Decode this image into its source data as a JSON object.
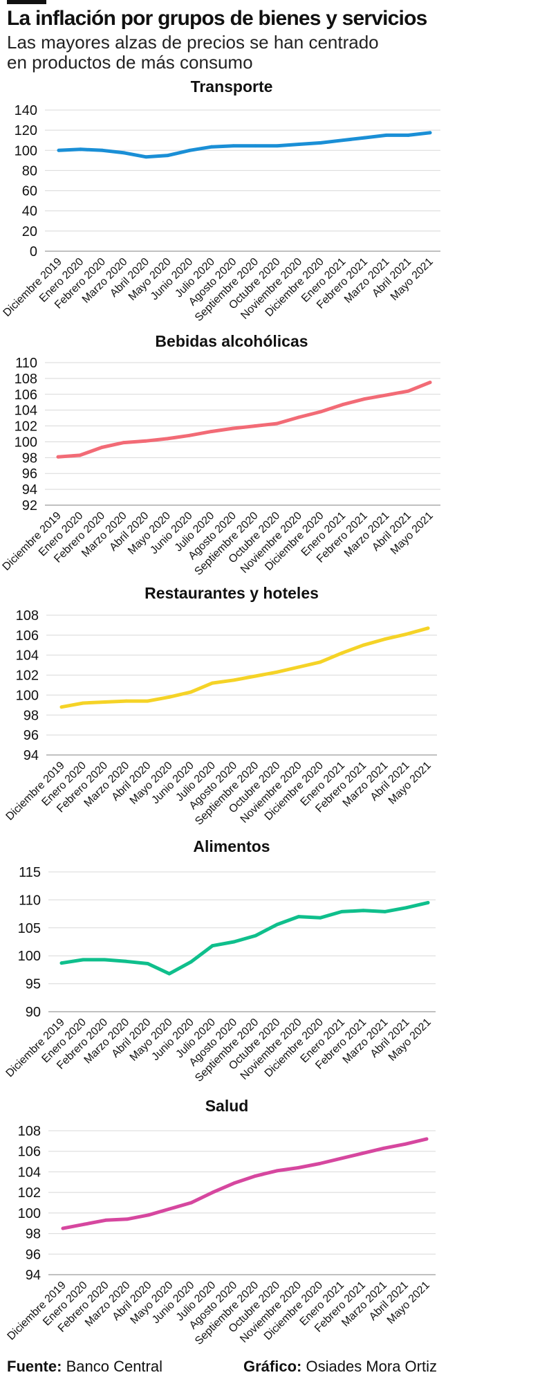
{
  "title": "La inflación por grupos de bienes y servicios",
  "subtitle": "Las mayores alzas de precios se han centrado en productos de más consumo",
  "footer": {
    "source_label": "Fuente:",
    "source_value": "Banco Central",
    "credit_label": "Gráfico:",
    "credit_value": "Osiades Mora Ortiz"
  },
  "chart_data": [
    {
      "type": "line",
      "title": "Transporte",
      "color": "#1a8fd6",
      "ylim": [
        0,
        140
      ],
      "yticks": [
        0,
        20,
        40,
        60,
        80,
        100,
        120,
        140
      ],
      "categories": [
        "Diciembre 2019",
        "Enero 2020",
        "Febrero 2020",
        "Marzo 2020",
        "Abril 2020",
        "Mayo 2020",
        "Junio 2020",
        "Julio 2020",
        "Agosto 2020",
        "Septiembre 2020",
        "Octubre 2020",
        "Noviembre 2020",
        "Diciembre 2020",
        "Enero 2021",
        "Febrero 2021",
        "Marzo 2021",
        "Abril 2021",
        "Mayo 2021"
      ],
      "values": [
        100,
        101,
        100,
        97.5,
        93.5,
        95,
        100,
        103.5,
        104.5,
        104.5,
        104.5,
        106,
        107.5,
        110,
        112.5,
        115,
        115,
        117.5
      ]
    },
    {
      "type": "line",
      "title": "Bebidas alcohólicas",
      "color": "#f26b76",
      "ylim": [
        92,
        110
      ],
      "yticks": [
        92,
        94,
        96,
        98,
        100,
        102,
        104,
        106,
        108,
        110
      ],
      "categories": [
        "Diciembre 2019",
        "Enero 2020",
        "Febrero 2020",
        "Marzo 2020",
        "Abril 2020",
        "Mayo 2020",
        "Junio 2020",
        "Julio 2020",
        "Agosto 2020",
        "Septiembre 2020",
        "Octubre 2020",
        "Noviembre 2020",
        "Diciembre 2020",
        "Enero 2021",
        "Febrero 2021",
        "Marzo 2021",
        "Abril 2021",
        "Mayo 2021"
      ],
      "values": [
        98.1,
        98.3,
        99.3,
        99.9,
        100.1,
        100.4,
        100.8,
        101.3,
        101.7,
        102.0,
        102.3,
        103.1,
        103.8,
        104.7,
        105.4,
        105.9,
        106.4,
        107.5
      ]
    },
    {
      "type": "line",
      "title": "Restaurantes y hoteles",
      "color": "#f5d327",
      "ylim": [
        94,
        108
      ],
      "yticks": [
        94,
        96,
        98,
        100,
        102,
        104,
        106,
        108
      ],
      "categories": [
        "Diciembre 2019",
        "Enero 2020",
        "Febrero 2020",
        "Marzo 2020",
        "Abril 2020",
        "Mayo 2020",
        "Junio 2020",
        "Julio 2020",
        "Agosto 2020",
        "Septiembre 2020",
        "Octubre 2020",
        "Noviembre 2020",
        "Diciembre 2020",
        "Enero 2021",
        "Febrero 2021",
        "Marzo 2021",
        "Abril 2021",
        "Mayo 2021"
      ],
      "values": [
        98.8,
        99.2,
        99.3,
        99.4,
        99.4,
        99.8,
        100.3,
        101.2,
        101.5,
        101.9,
        102.3,
        102.8,
        103.3,
        104.2,
        105.0,
        105.6,
        106.1,
        106.7
      ]
    },
    {
      "type": "line",
      "title": "Alimentos",
      "color": "#0fbf8c",
      "ylim": [
        90,
        115
      ],
      "yticks": [
        90,
        95,
        100,
        105,
        110,
        115
      ],
      "categories": [
        "Diciembre 2019",
        "Enero 2020",
        "Febrero 2020",
        "Marzo 2020",
        "Abril 2020",
        "Mayo 2020",
        "Junio 2020",
        "Julio 2020",
        "Agosto 2020",
        "Septiembre 2020",
        "Octubre 2020",
        "Noviembre 2020",
        "Diciembre 2020",
        "Enero 2021",
        "Febrero 2021",
        "Marzo 2021",
        "Abril 2021",
        "Mayo 2021"
      ],
      "values": [
        98.7,
        99.3,
        99.3,
        99.0,
        98.6,
        96.8,
        98.9,
        101.8,
        102.5,
        103.6,
        105.6,
        107.0,
        106.8,
        107.9,
        108.1,
        107.9,
        108.6,
        109.5
      ]
    },
    {
      "type": "line",
      "title": "Salud",
      "color": "#d6479f",
      "ylim": [
        94,
        108
      ],
      "yticks": [
        94,
        96,
        98,
        100,
        102,
        104,
        106,
        108
      ],
      "categories": [
        "Diciembre 2019",
        "Enero 2020",
        "Febrero 2020",
        "Marzo 2020",
        "Abril 2020",
        "Mayo 2020",
        "Junio 2020",
        "Julio 2020",
        "Agosto 2020",
        "Septiembre 2020",
        "Octubre 2020",
        "Noviembre 2020",
        "Diciembre 2020",
        "Enero 2021",
        "Febrero 2021",
        "Marzo 2021",
        "Abril 2021",
        "Mayo 2021"
      ],
      "values": [
        98.5,
        98.9,
        99.3,
        99.4,
        99.8,
        100.4,
        101.0,
        102.0,
        102.9,
        103.6,
        104.1,
        104.4,
        104.8,
        105.3,
        105.8,
        106.3,
        106.7,
        107.2
      ]
    }
  ]
}
